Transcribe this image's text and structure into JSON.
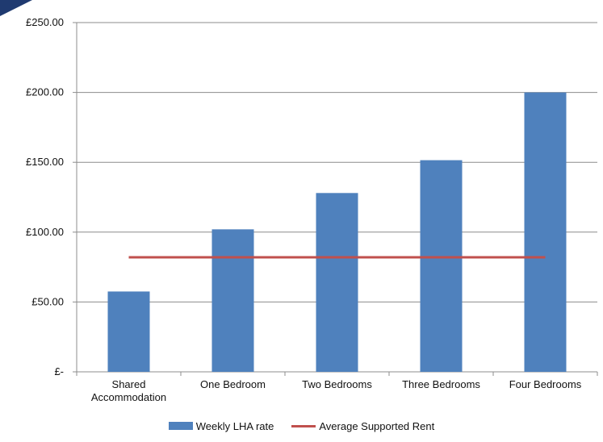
{
  "chart_data": {
    "type": "bar",
    "categories": [
      "Shared\nAccommodation",
      "One Bedroom",
      "Two Bedrooms",
      "Three Bedrooms",
      "Four Bedrooms"
    ],
    "y_ticks": [
      "£-",
      "£50.00",
      "£100.00",
      "£150.00",
      "£200.00",
      "£250.00"
    ],
    "ylim": [
      0,
      250
    ],
    "grid": true,
    "legend_placement": "bottom",
    "series": [
      {
        "name": "Weekly LHA rate",
        "kind": "bar",
        "color": "#4F81BD",
        "values": [
          57.5,
          102,
          128,
          151.5,
          200
        ]
      },
      {
        "name": "Average Supported Rent",
        "kind": "line",
        "color": "#C0504D",
        "values": [
          82,
          82,
          82,
          82,
          82
        ]
      }
    ]
  }
}
